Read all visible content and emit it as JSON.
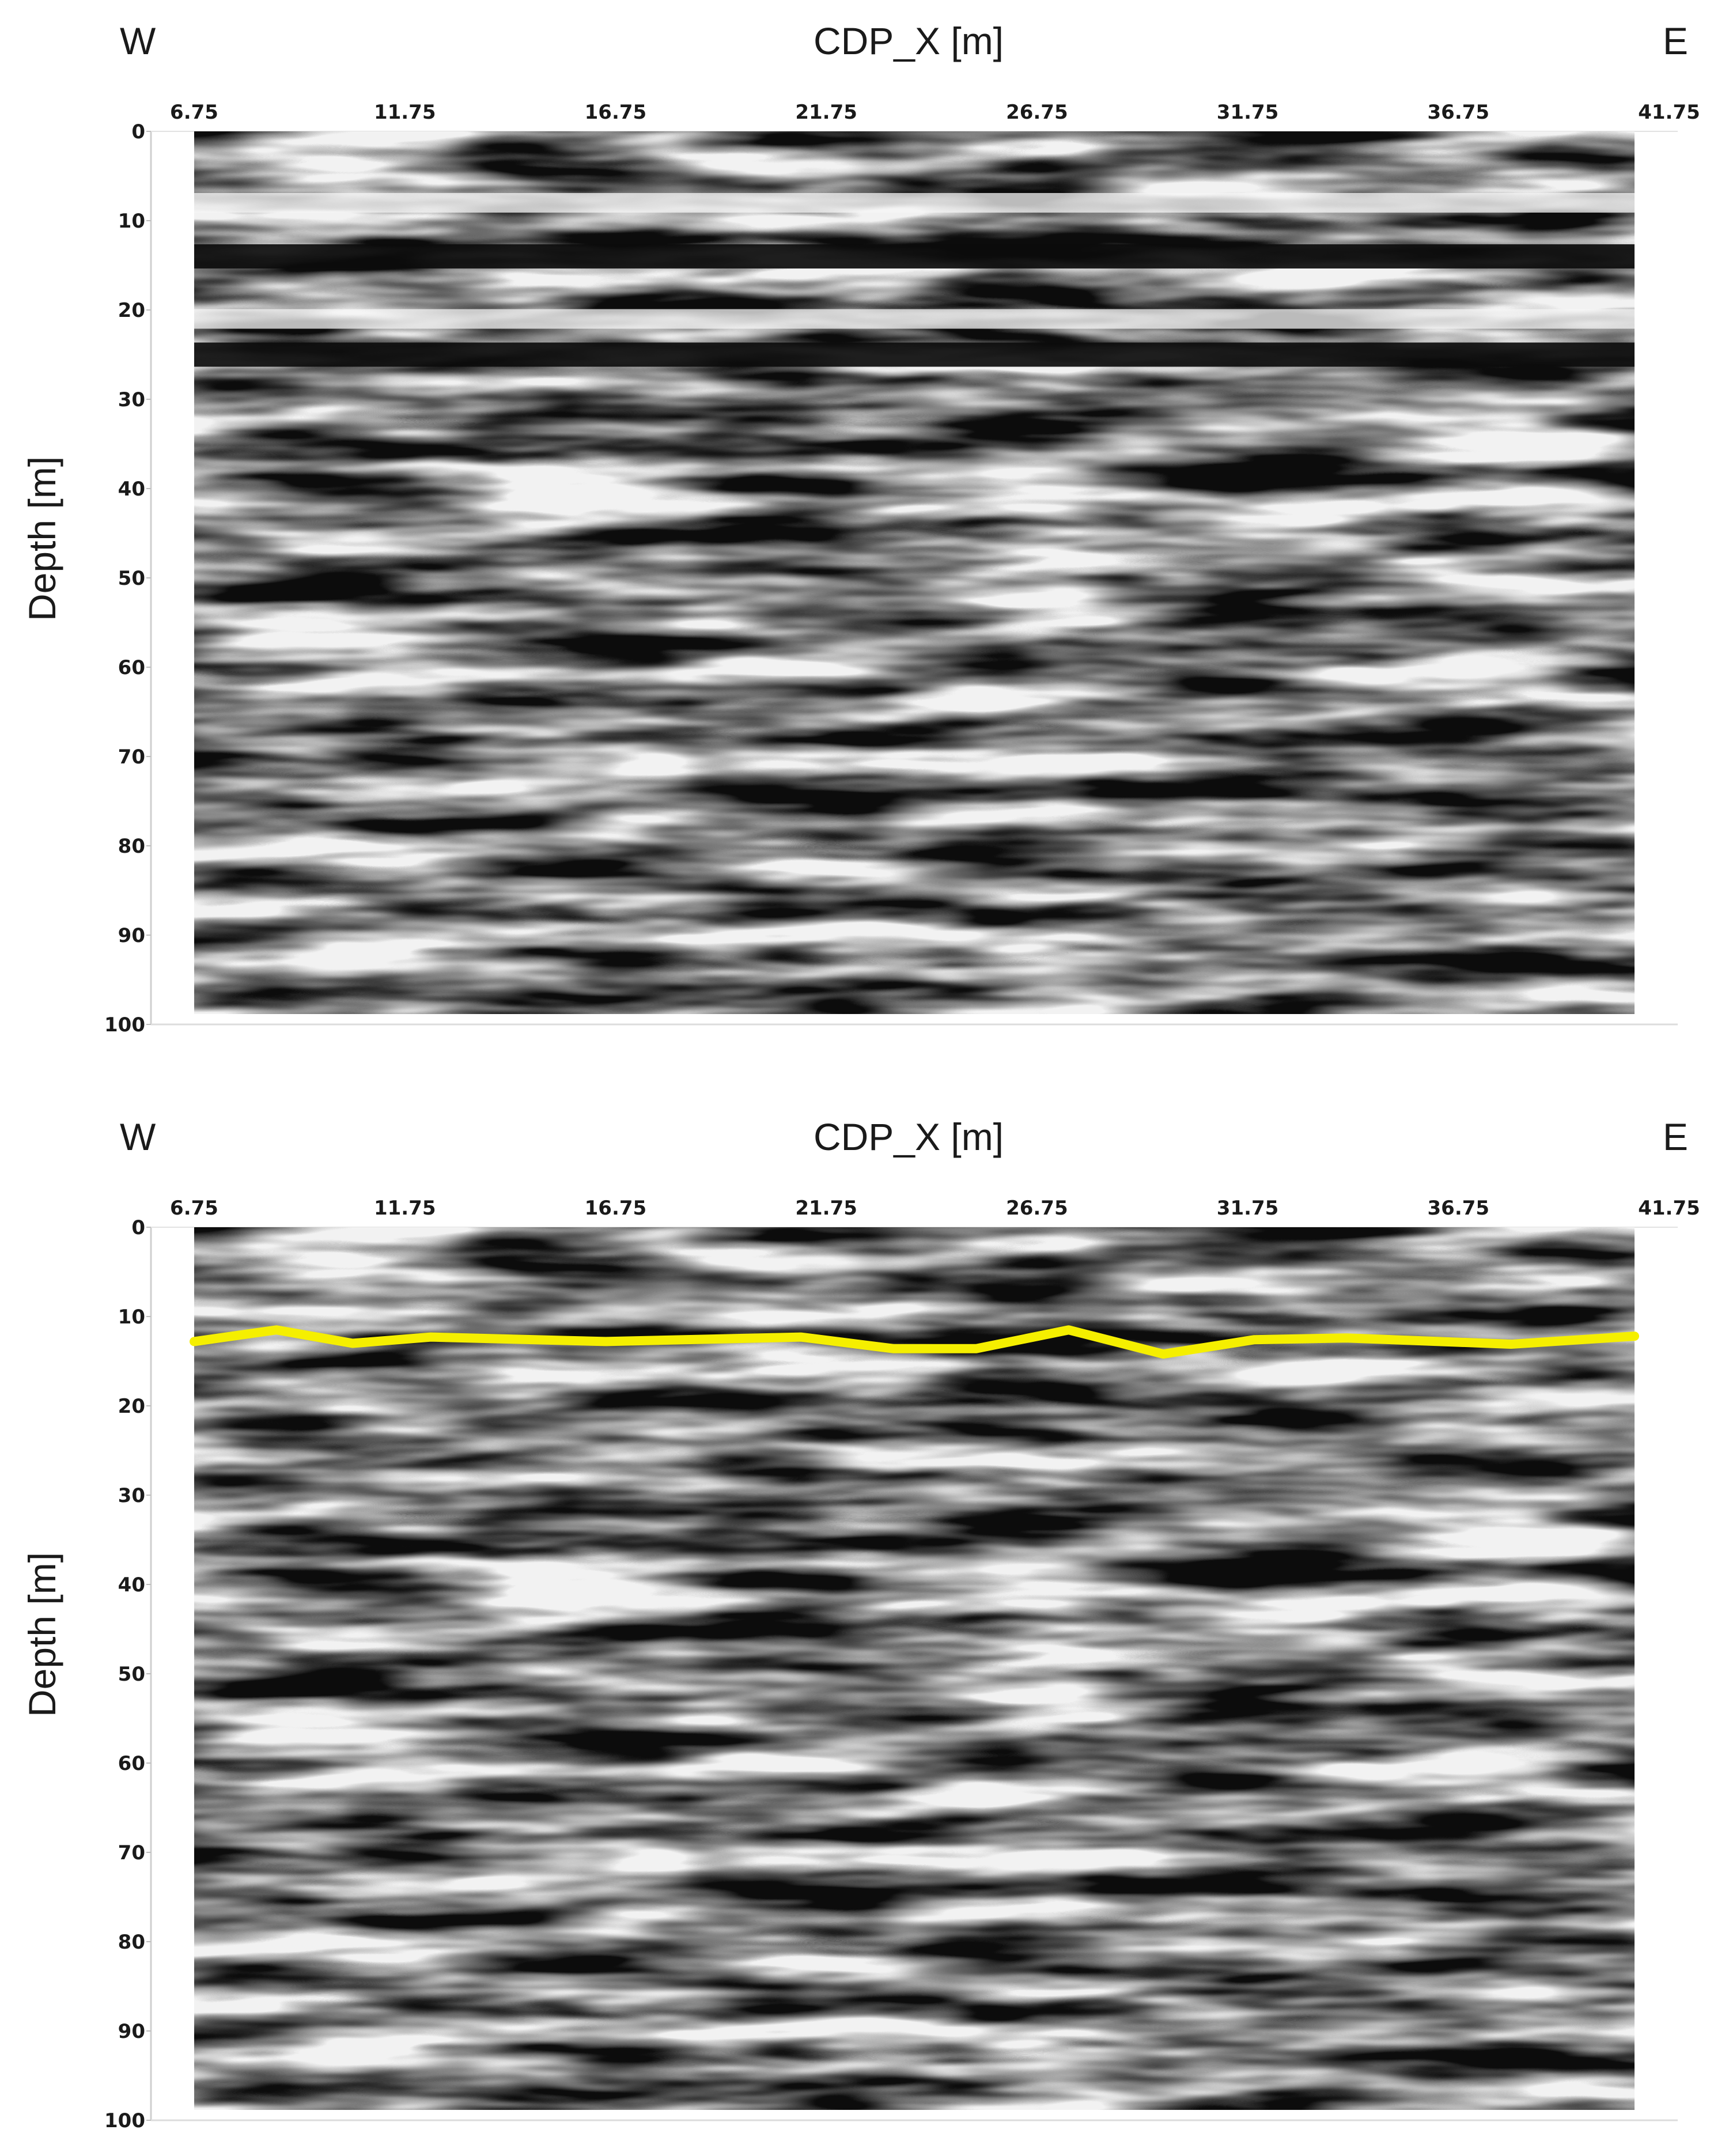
{
  "chart_data": [
    {
      "type": "heatmap",
      "subtype": "ground-penetrating radar depth section (grayscale)",
      "left_label": "W",
      "right_label": "E",
      "xlabel": "CDP_X [m]",
      "ylabel": "Depth [m]",
      "x_ticks": [
        "6.75",
        "11.75",
        "16.75",
        "21.75",
        "26.75",
        "31.75",
        "36.75",
        "41.75"
      ],
      "y_ticks": [
        "0",
        "10",
        "20",
        "30",
        "40",
        "50",
        "60",
        "70",
        "80",
        "90",
        "100"
      ],
      "xlim": [
        6.75,
        41.75
      ],
      "ylim": [
        0,
        100
      ],
      "y_inverted": true,
      "colormap": "grayscale",
      "reflectors": [
        {
          "tone": "white",
          "depth": 8
        },
        {
          "tone": "black",
          "depth": 14
        },
        {
          "tone": "white",
          "depth": 21
        },
        {
          "tone": "black",
          "depth": 25
        }
      ]
    },
    {
      "type": "heatmap",
      "subtype": "ground-penetrating radar depth section (grayscale) with picked horizon",
      "left_label": "W",
      "right_label": "E",
      "xlabel": "CDP_X [m]",
      "ylabel": "Depth [m]",
      "x_ticks": [
        "6.75",
        "11.75",
        "16.75",
        "21.75",
        "26.75",
        "31.75",
        "36.75",
        "41.75"
      ],
      "y_ticks": [
        "0",
        "10",
        "20",
        "30",
        "40",
        "50",
        "60",
        "70",
        "80",
        "90",
        "100"
      ],
      "xlim": [
        6.75,
        41.75
      ],
      "ylim": [
        0,
        100
      ],
      "y_inverted": true,
      "colormap": "grayscale",
      "horizon": {
        "color": "#f5ef00",
        "points": [
          {
            "x": 6.75,
            "y": 12.8
          },
          {
            "x": 8.75,
            "y": 11.5
          },
          {
            "x": 10.6,
            "y": 13.0
          },
          {
            "x": 12.5,
            "y": 12.3
          },
          {
            "x": 16.75,
            "y": 12.8
          },
          {
            "x": 21.5,
            "y": 12.3
          },
          {
            "x": 23.75,
            "y": 13.6
          },
          {
            "x": 25.75,
            "y": 13.6
          },
          {
            "x": 28.0,
            "y": 11.5
          },
          {
            "x": 30.3,
            "y": 14.2
          },
          {
            "x": 32.5,
            "y": 12.6
          },
          {
            "x": 34.75,
            "y": 12.4
          },
          {
            "x": 38.75,
            "y": 13.1
          },
          {
            "x": 41.75,
            "y": 12.2
          }
        ]
      }
    }
  ]
}
